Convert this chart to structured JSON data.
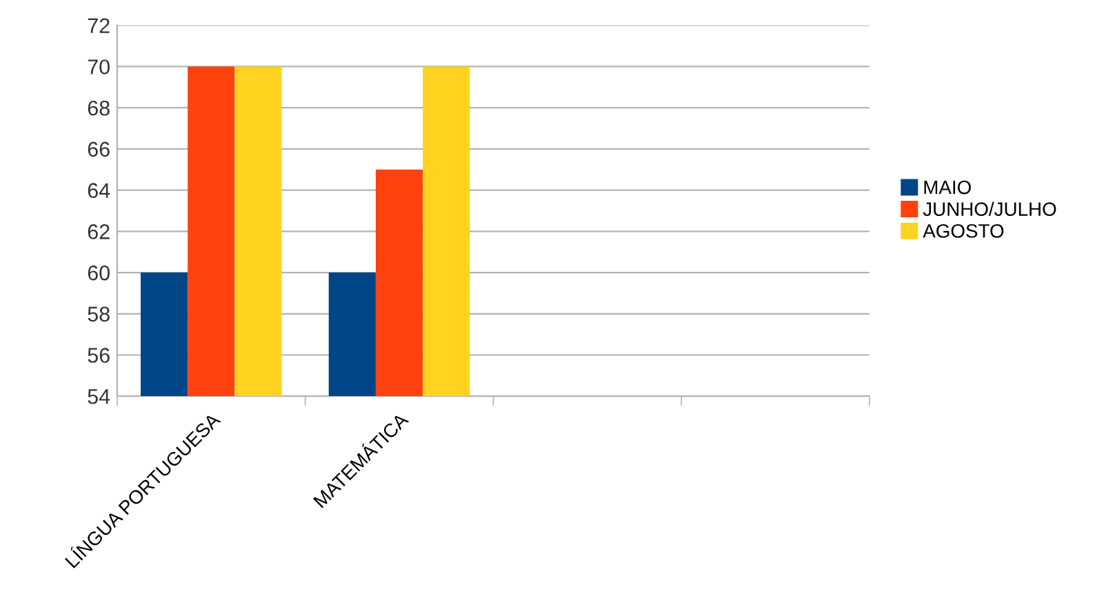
{
  "chart_data": {
    "type": "bar",
    "categories": [
      "LÍNGUA PORTUGUESA",
      "MATEMÁTICA",
      null,
      null
    ],
    "series": [
      {
        "name": "MAIO",
        "color": "#004586",
        "values": [
          60,
          60,
          null,
          null
        ]
      },
      {
        "name": "JUNHO/JULHO",
        "color": "#ff420e",
        "values": [
          70,
          65,
          null,
          null
        ]
      },
      {
        "name": "AGOSTO",
        "color": "#ffd320",
        "values": [
          70,
          70,
          null,
          null
        ]
      }
    ],
    "ylim": [
      54,
      72
    ],
    "yticks": [
      54,
      56,
      58,
      60,
      62,
      64,
      66,
      68,
      70,
      72
    ],
    "grid": "y",
    "legend": "right"
  }
}
